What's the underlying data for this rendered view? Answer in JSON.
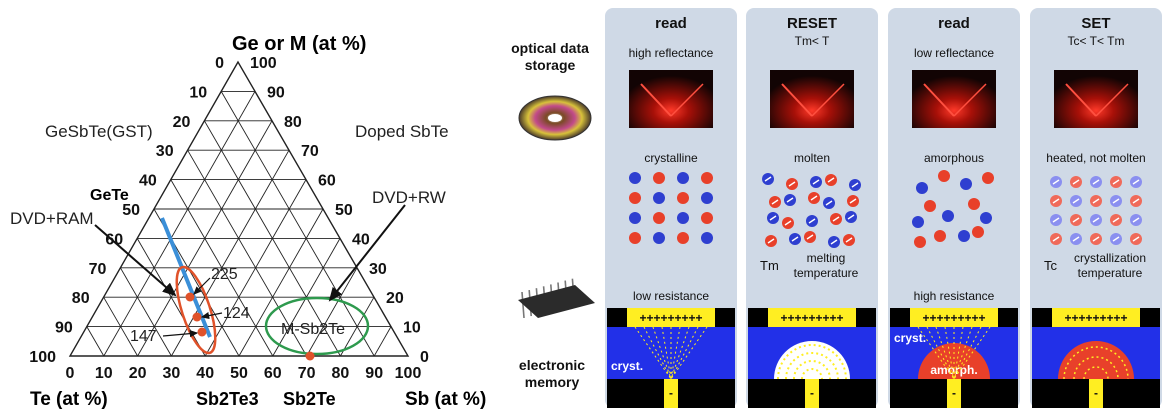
{
  "ternary": {
    "top_label": "Ge or M (at %)",
    "bottom_left_label": "Te (at %)",
    "bottom_right_label": "Sb (at %)",
    "left_ticks": [
      "100",
      "90",
      "80",
      "70",
      "60",
      "50",
      "40",
      "30",
      "20",
      "10",
      "0"
    ],
    "right_ticks": [
      "100",
      "90",
      "80",
      "70",
      "60",
      "50",
      "40",
      "30",
      "20",
      "10",
      "0"
    ],
    "bottom_ticks": [
      "0",
      "10",
      "20",
      "30",
      "40",
      "50",
      "60",
      "70",
      "80",
      "90",
      "100"
    ],
    "gst_label": "GeSbTe(GST)",
    "doped_label": "Doped SbTe",
    "gete_label": "GeTe",
    "dvdram_label": "DVD+RAM",
    "dvdrw_label": "DVD+RW",
    "msbte_label": "M-Sb2Te",
    "sb2te3_label": "Sb2Te3",
    "sb2te_label": "Sb2Te",
    "pt_225": "225",
    "pt_124": "124",
    "pt_147": "147",
    "colors": {
      "tie_line": "#3b8fd8",
      "ellipse_red": "#e0522a",
      "ellipse_green": "#2e9a4e",
      "point": "#e0522a"
    }
  },
  "panels": {
    "row_labels": {
      "optical": "optical data storage",
      "electronic": "electronic memory"
    },
    "columns": [
      {
        "title": "read",
        "subtitle": "",
        "top_note": "high reflectance",
        "state": "crystalline",
        "bottom_note": "low resistance",
        "temp_symbol": "",
        "temp_label": "",
        "cell_label": "cryst.",
        "cell_sublabel": ""
      },
      {
        "title": "RESET",
        "subtitle": "Tm< T",
        "top_note": "",
        "state": "molten",
        "bottom_note": "",
        "temp_symbol": "Tm",
        "temp_label": "melting temperature",
        "cell_label": "",
        "cell_sublabel": ""
      },
      {
        "title": "read",
        "subtitle": "",
        "top_note": "low reflectance",
        "state": "amorphous",
        "bottom_note": "high resistance",
        "temp_symbol": "",
        "temp_label": "",
        "cell_label": "cryst.",
        "cell_sublabel": "amorph."
      },
      {
        "title": "SET",
        "subtitle": "Tc< T< Tm",
        "top_note": "",
        "state": "heated, not molten",
        "bottom_note": "",
        "temp_symbol": "Tc",
        "temp_label": "crystallization temperature",
        "cell_label": "",
        "cell_sublabel": ""
      }
    ],
    "electrode_text": "+++++++++",
    "minus": "-"
  }
}
